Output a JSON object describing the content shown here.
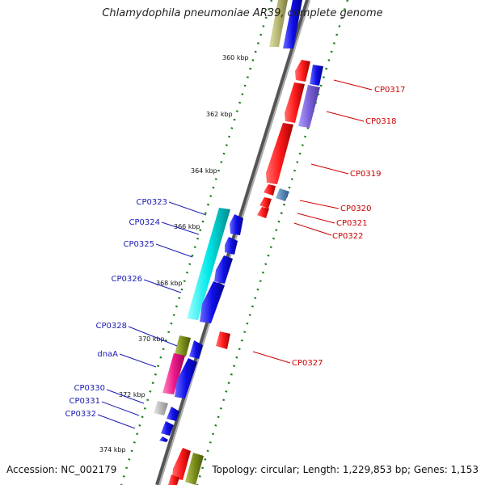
{
  "title": "Chlamydophila pneumoniae AR39, complete genome",
  "accession": "Accession: NC_002179",
  "summary": "Topology: circular; Length: 1,229,853 bp; Genes: 1,153",
  "ticks": [
    "360 kbp",
    "362 kbp",
    "364 kbp",
    "366 kbp",
    "368 kbp",
    "370 kbp",
    "372 kbp",
    "374 kbp"
  ],
  "genes_forward": [
    "CP0323",
    "CP0324",
    "CP0325",
    "CP0326",
    "CP0328",
    "dnaA",
    "CP0330",
    "CP0331",
    "CP0332"
  ],
  "genes_reverse": [
    "CP0317",
    "CP0318",
    "CP0319",
    "CP0320",
    "CP0321",
    "CP0322",
    "CP0327"
  ],
  "colors": {
    "forward": "#1010e8",
    "reverse": "#ff1a1a",
    "forward_label": "#1a1ab4",
    "reverse_label": "#cc0000",
    "tick_dots": "#1a7a1a",
    "cyan_feature": "#00e8e8",
    "pink_feature": "#ee1a8a",
    "olive_feature": "#7a8c1a",
    "khaki_feature": "#b4b470",
    "purple_feature": "#7a60d8",
    "steel_feature": "#4a80b4",
    "grey_feature": "#a8a8a8",
    "backbone": "#7a7a7a"
  }
}
